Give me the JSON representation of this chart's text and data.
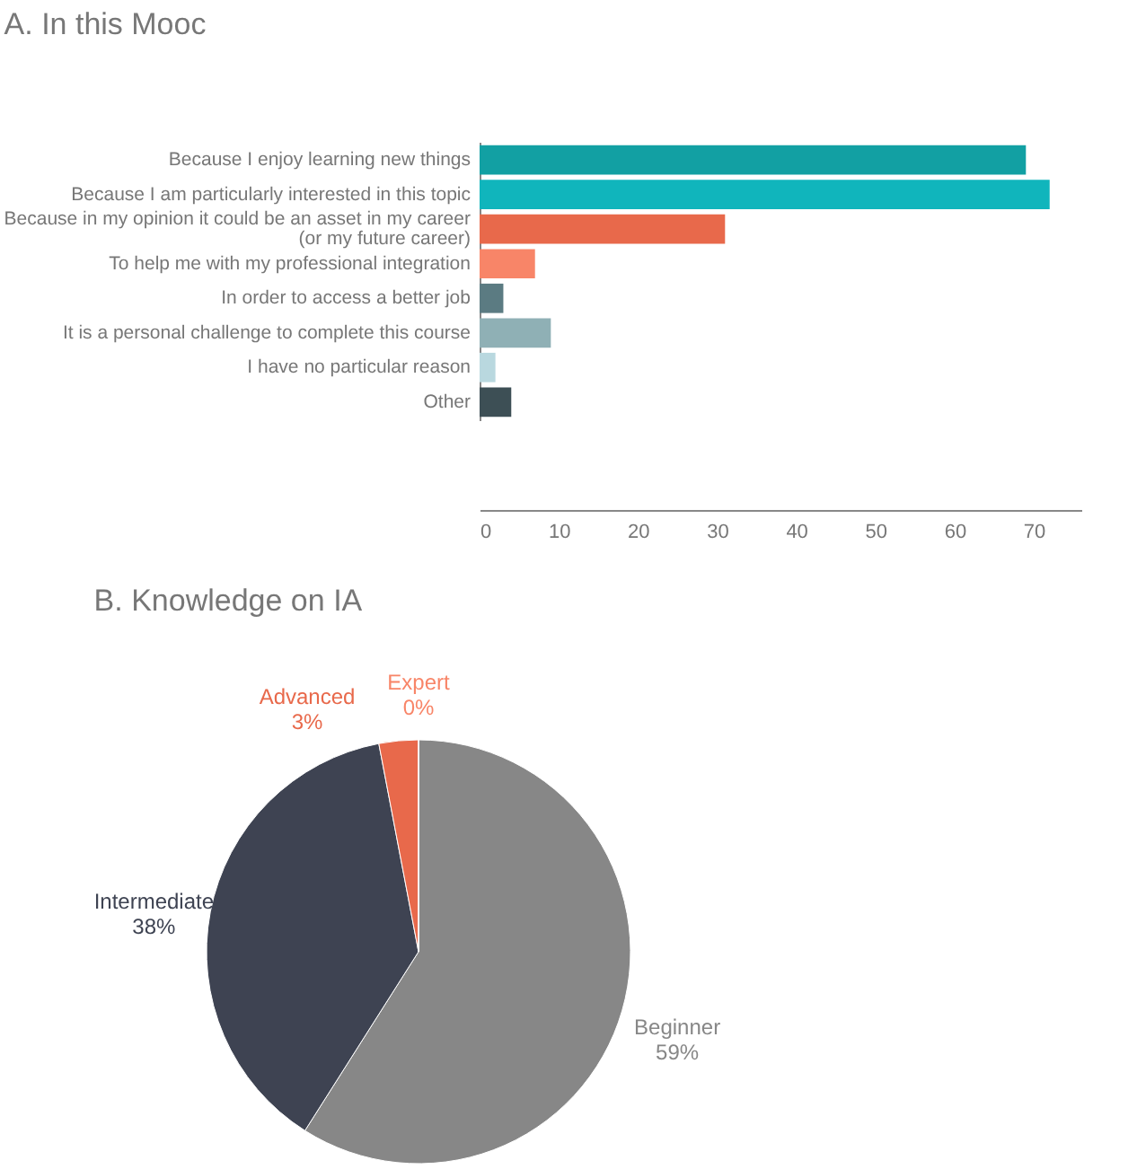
{
  "chart_data": [
    {
      "type": "bar",
      "title": "A. In this Mooc",
      "orientation": "horizontal",
      "categories": [
        "Because I enjoy learning new things",
        "Because I am particularly interested in this topic",
        "Because in my opinion it could be an asset in my career\n(or my future career)",
        "To help me with my professional integration",
        "In order to access a better job",
        "It is a personal challenge to complete this course",
        "I have no particular reason",
        "Other"
      ],
      "values": [
        69,
        72,
        31,
        7,
        3,
        9,
        2,
        4
      ],
      "colors": [
        "#12a0a3",
        "#10b5bc",
        "#e8694b",
        "#f88568",
        "#5b7b82",
        "#8fb0b5",
        "#b9d8df",
        "#3d4f55"
      ],
      "xlim": [
        0,
        76
      ],
      "xticks": [
        0,
        10,
        20,
        30,
        40,
        50,
        60,
        70
      ],
      "grid": false
    },
    {
      "type": "pie",
      "title": "B. Knowledge on IA",
      "categories": [
        "Beginner",
        "Intermediate",
        "Advanced",
        "Expert"
      ],
      "values": [
        59,
        38,
        3,
        0
      ],
      "value_labels": [
        "59%",
        "38%",
        "3%",
        "0%"
      ],
      "colors": [
        "#878787",
        "#3e4352",
        "#e8694b",
        "#f88568"
      ]
    }
  ]
}
